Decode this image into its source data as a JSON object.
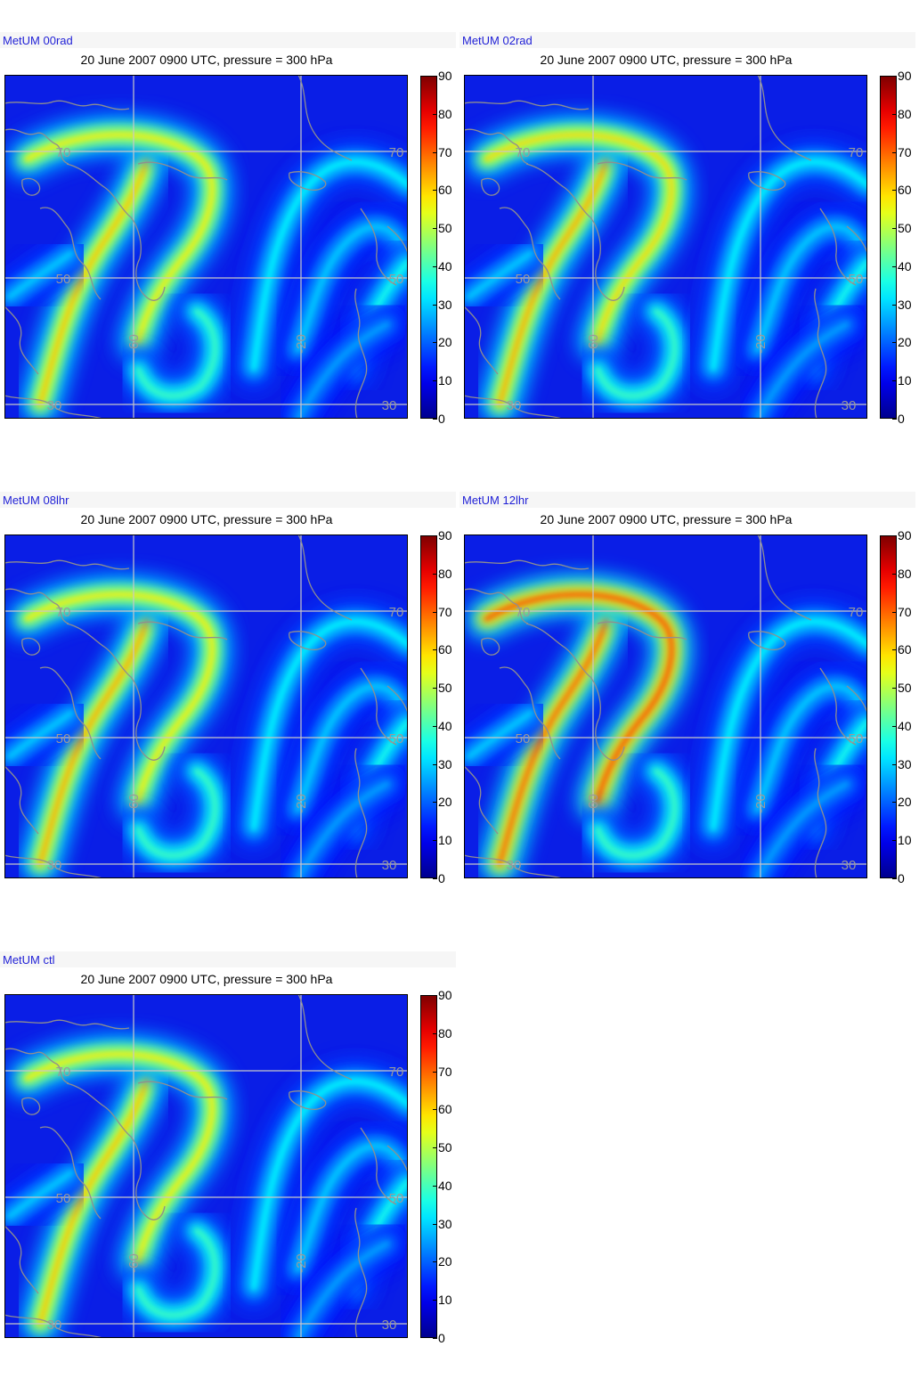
{
  "figure": {
    "panels": [
      {
        "run": "MetUM 00rad",
        "title": "20 June 2007 0900 UTC, pressure = 300 hPa",
        "jet_peak": 62,
        "arc_peak": 58
      },
      {
        "run": "MetUM 02rad",
        "title": "20 June 2007 0900 UTC, pressure = 300 hPa",
        "jet_peak": 64,
        "arc_peak": 60
      },
      {
        "run": "MetUM 08lhr",
        "title": "20 June 2007 0900 UTC, pressure = 300 hPa",
        "jet_peak": 64,
        "arc_peak": 58
      },
      {
        "run": "MetUM 12lhr",
        "title": "20 June 2007 0900 UTC, pressure = 300 hPa",
        "jet_peak": 70,
        "arc_peak": 72
      },
      {
        "run": "MetUM ctl",
        "title": "20 June 2007 0900 UTC, pressure = 300 hPa",
        "jet_peak": 62,
        "arc_peak": 58
      }
    ],
    "colorbar": {
      "min": 0,
      "max": 90,
      "ticks": [
        "0",
        "10",
        "20",
        "30",
        "40",
        "50",
        "60",
        "70",
        "80",
        "90"
      ]
    },
    "grid_labels": {
      "lat_70": "70",
      "lat_50": "50",
      "lat_30": "30",
      "lon_60": "-60",
      "lon_20": "-20"
    },
    "colors": {
      "run_label": "#1f1fd6",
      "background_field": "#0a1ee6",
      "coastline": "#8f8f8f",
      "gridline": "#c8c8c8"
    }
  }
}
